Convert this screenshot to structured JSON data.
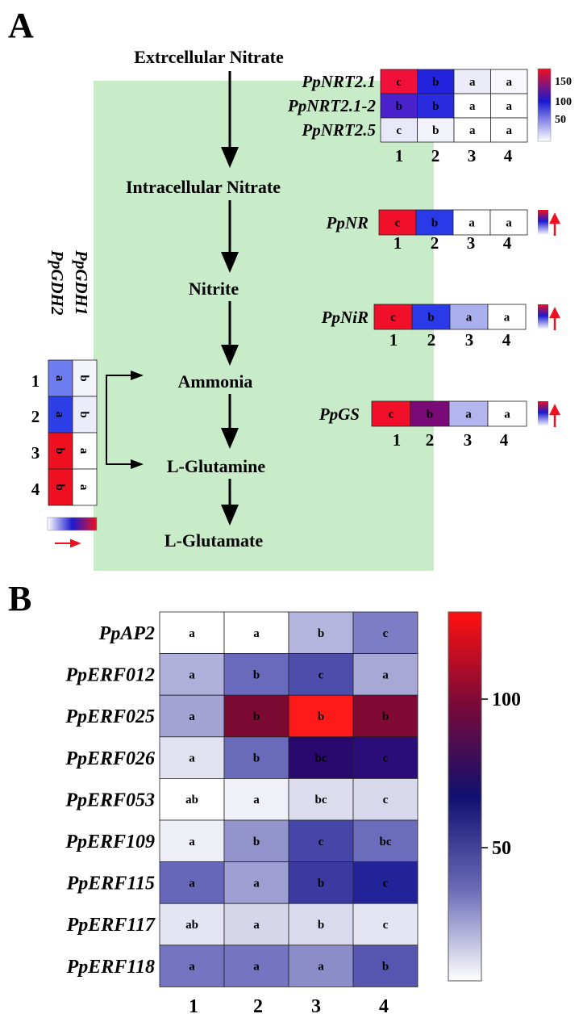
{
  "panel_a": {
    "label": "A",
    "pathway": [
      "Extrcellular Nitrate",
      "Intracellular Nitrate",
      "Nitrite",
      "Ammonia",
      "L-Glutamine",
      "L-Glutamate"
    ],
    "nrt": {
      "genes": [
        "PpNRT2.1",
        "PpNRT2.1-2",
        "PpNRT2.5"
      ],
      "rows": [
        [
          {
            "l": "c",
            "c": "#f0103a"
          },
          {
            "l": "b",
            "c": "#2323dd"
          },
          {
            "l": "a",
            "c": "#ecebf8"
          },
          {
            "l": "a",
            "c": "#f7f7fd"
          }
        ],
        [
          {
            "l": "b",
            "c": "#4a22cc"
          },
          {
            "l": "b",
            "c": "#2b2be0"
          },
          {
            "l": "a",
            "c": "#ffffff"
          },
          {
            "l": "a",
            "c": "#ffffff"
          }
        ],
        [
          {
            "l": "c",
            "c": "#e8e8f8"
          },
          {
            "l": "b",
            "c": "#f2f2fb"
          },
          {
            "l": "a",
            "c": "#ffffff"
          },
          {
            "l": "a",
            "c": "#ffffff"
          }
        ]
      ],
      "columns": [
        "1",
        "2",
        "3",
        "4"
      ],
      "scale_ticks": [
        "150",
        "100",
        "50"
      ]
    },
    "nr": {
      "gene": "PpNR",
      "cells": [
        {
          "l": "c",
          "c": "#f0102a"
        },
        {
          "l": "b",
          "c": "#2a3ae8"
        },
        {
          "l": "a",
          "c": "#ffffff"
        },
        {
          "l": "a",
          "c": "#ffffff"
        }
      ],
      "columns": [
        "1",
        "2",
        "3",
        "4"
      ]
    },
    "nir": {
      "gene": "PpNiR",
      "cells": [
        {
          "l": "c",
          "c": "#f0102a"
        },
        {
          "l": "b",
          "c": "#2a3ae8"
        },
        {
          "l": "a",
          "c": "#aab0ee"
        },
        {
          "l": "a",
          "c": "#ffffff"
        }
      ],
      "columns": [
        "1",
        "2",
        "3",
        "4"
      ]
    },
    "gs": {
      "gene": "PpGS",
      "cells": [
        {
          "l": "c",
          "c": "#f0102a"
        },
        {
          "l": "b",
          "c": "#7a0a78"
        },
        {
          "l": "a",
          "c": "#b4b4ee"
        },
        {
          "l": "a",
          "c": "#ffffff"
        }
      ],
      "columns": [
        "1",
        "2",
        "3",
        "4"
      ]
    },
    "gdh": {
      "genes": [
        "PpGDH1",
        "PpGDH2"
      ],
      "rows": [
        "1",
        "2",
        "3",
        "4"
      ],
      "gdh2": [
        {
          "l": "a",
          "c": "#6e7ef0"
        },
        {
          "l": "a",
          "c": "#2c3ee6"
        },
        {
          "l": "b",
          "c": "#ee1020"
        },
        {
          "l": "b",
          "c": "#ee1020"
        }
      ],
      "gdh1": [
        {
          "l": "b",
          "c": "#f3f3fc"
        },
        {
          "l": "b",
          "c": "#ebebf9"
        },
        {
          "l": "a",
          "c": "#ffffff"
        },
        {
          "l": "a",
          "c": "#ffffff"
        }
      ]
    },
    "colors": {
      "box": "#c8ebc8",
      "red": "#ee1020",
      "blue": "#1a1ad0"
    }
  },
  "panel_b": {
    "label": "B",
    "genes": [
      "PpAP2",
      "PpERF012",
      "PpERF025",
      "PpERF026",
      "PpERF053",
      "PpERF109",
      "PpERF115",
      "PpERF117",
      "PpERF118"
    ],
    "columns": [
      "1",
      "2",
      "3",
      "4"
    ],
    "rows": [
      [
        {
          "l": "a",
          "c": "#ffffff"
        },
        {
          "l": "a",
          "c": "#ffffff"
        },
        {
          "l": "b",
          "c": "#b4b4dc"
        },
        {
          "l": "c",
          "c": "#7d7dc5"
        }
      ],
      [
        {
          "l": "a",
          "c": "#b0b0da"
        },
        {
          "l": "b",
          "c": "#6a6abc"
        },
        {
          "l": "c",
          "c": "#4d4dab"
        },
        {
          "l": "a",
          "c": "#a8a8d6"
        }
      ],
      [
        {
          "l": "a",
          "c": "#a4a4d4"
        },
        {
          "l": "b",
          "c": "#7a0a32"
        },
        {
          "l": "b",
          "c": "#ff1a1a"
        },
        {
          "l": "b",
          "c": "#800a33"
        }
      ],
      [
        {
          "l": "a",
          "c": "#e1e1f0"
        },
        {
          "l": "b",
          "c": "#6a6abb"
        },
        {
          "l": "bc",
          "c": "#280a6e"
        },
        {
          "l": "c",
          "c": "#2b0d7a"
        }
      ],
      [
        {
          "l": "ab",
          "c": "#ffffff"
        },
        {
          "l": "a",
          "c": "#f0f0f8"
        },
        {
          "l": "bc",
          "c": "#dcdcee"
        },
        {
          "l": "c",
          "c": "#d8d8ec"
        }
      ],
      [
        {
          "l": "a",
          "c": "#eeeef7"
        },
        {
          "l": "b",
          "c": "#9494cc"
        },
        {
          "l": "c",
          "c": "#4646a8"
        },
        {
          "l": "bc",
          "c": "#6c6cbc"
        }
      ],
      [
        {
          "l": "a",
          "c": "#6868bb"
        },
        {
          "l": "a",
          "c": "#9e9ed2"
        },
        {
          "l": "b",
          "c": "#3a3aa0"
        },
        {
          "l": "c",
          "c": "#232399"
        }
      ],
      [
        {
          "l": "ab",
          "c": "#e4e4f2"
        },
        {
          "l": "a",
          "c": "#d6d6eb"
        },
        {
          "l": "b",
          "c": "#dadaee"
        },
        {
          "l": "c",
          "c": "#e4e4f2"
        }
      ],
      [
        {
          "l": "a",
          "c": "#7474c0"
        },
        {
          "l": "a",
          "c": "#7474c0"
        },
        {
          "l": "a",
          "c": "#8c8cc9"
        },
        {
          "l": "b",
          "c": "#5656b0"
        }
      ]
    ],
    "scale_ticks": [
      "100",
      "50"
    ]
  }
}
